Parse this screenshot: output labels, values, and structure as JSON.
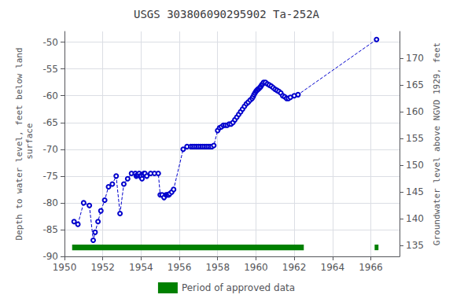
{
  "chart_data": {
    "type": "line",
    "title": "USGS 303806090295902 Ta-252A",
    "ylabel": "Depth to water level, feet below land\n surface",
    "y2label": "Groundwater level above NGVD 1929, feet",
    "x": [
      1950.5,
      1950.7,
      1951.0,
      1951.3,
      1951.5,
      1951.6,
      1951.75,
      1951.9,
      1952.1,
      1952.3,
      1952.5,
      1952.7,
      1952.9,
      1953.1,
      1953.3,
      1953.5,
      1953.7,
      1953.75,
      1953.8,
      1953.85,
      1953.9,
      1953.95,
      1954.0,
      1954.05,
      1954.1,
      1954.15,
      1954.2,
      1954.3,
      1954.5,
      1954.7,
      1954.9,
      1955.0,
      1955.1,
      1955.2,
      1955.3,
      1955.35,
      1955.4,
      1955.45,
      1955.5,
      1955.6,
      1955.7,
      1956.2,
      1956.4,
      1956.6,
      1956.7,
      1956.8,
      1956.9,
      1957.0,
      1957.1,
      1957.2,
      1957.3,
      1957.4,
      1957.5,
      1957.6,
      1957.7,
      1957.8,
      1958.0,
      1958.1,
      1958.2,
      1958.3,
      1958.4,
      1958.5,
      1958.6,
      1958.7,
      1958.8,
      1958.9,
      1959.0,
      1959.1,
      1959.2,
      1959.3,
      1959.4,
      1959.5,
      1959.6,
      1959.7,
      1959.8,
      1959.85,
      1959.9,
      1959.95,
      1960.0,
      1960.05,
      1960.1,
      1960.15,
      1960.2,
      1960.25,
      1960.3,
      1960.35,
      1960.4,
      1960.5,
      1960.6,
      1960.7,
      1960.8,
      1960.9,
      1961.0,
      1961.1,
      1961.2,
      1961.3,
      1961.4,
      1961.5,
      1961.6,
      1961.7,
      1961.8,
      1962.0,
      1962.2,
      1966.3
    ],
    "series": [
      {
        "color": "#0000cc",
        "marker": "hollow_circle",
        "line_style": "dashed",
        "values": [
          -83.5,
          -84.0,
          -80.0,
          -80.5,
          -87.0,
          -85.5,
          -83.5,
          -81.5,
          -79.5,
          -77.0,
          -76.5,
          -75.0,
          -82.0,
          -76.5,
          -75.5,
          -74.5,
          -74.5,
          -75.0,
          -74.8,
          -74.8,
          -74.5,
          -75.0,
          -75.0,
          -75.5,
          -74.8,
          -74.5,
          -74.5,
          -75.0,
          -74.5,
          -74.5,
          -74.5,
          -78.5,
          -78.5,
          -79.0,
          -78.5,
          -78.5,
          -78.5,
          -78.5,
          -78.3,
          -78.0,
          -77.5,
          -70.0,
          -69.5,
          -69.5,
          -69.5,
          -69.5,
          -69.5,
          -69.5,
          -69.5,
          -69.5,
          -69.5,
          -69.5,
          -69.5,
          -69.5,
          -69.5,
          -69.3,
          -66.5,
          -66.0,
          -65.8,
          -65.5,
          -65.5,
          -65.5,
          -65.3,
          -65.3,
          -65.0,
          -64.5,
          -64.0,
          -63.5,
          -63.0,
          -62.5,
          -62.0,
          -61.5,
          -61.2,
          -60.8,
          -60.5,
          -60.2,
          -59.8,
          -59.5,
          -59.2,
          -59.0,
          -58.8,
          -58.7,
          -58.5,
          -58.3,
          -58.0,
          -57.8,
          -57.5,
          -57.5,
          -57.8,
          -58.0,
          -58.2,
          -58.5,
          -58.8,
          -59.0,
          -59.2,
          -59.5,
          -60.0,
          -60.2,
          -60.5,
          -60.5,
          -60.3,
          -60.0,
          -59.8,
          -49.5
        ]
      }
    ],
    "xlim": [
      1950,
      1967.5
    ],
    "xticks": [
      1950,
      1952,
      1954,
      1956,
      1958,
      1960,
      1962,
      1964,
      1966
    ],
    "ylim": [
      -90,
      -48
    ],
    "yticks": [
      -90,
      -85,
      -80,
      -75,
      -70,
      -65,
      -60,
      -55,
      -50
    ],
    "y2lim": [
      133,
      175
    ],
    "y2ticks": [
      135,
      140,
      145,
      150,
      155,
      160,
      165,
      170
    ],
    "grid": true,
    "approved_periods": [
      [
        1950.4,
        1962.5
      ],
      [
        1966.2,
        1966.4
      ]
    ],
    "approved_label": "Period of approved data",
    "approved_color": "#008000",
    "legend": "bottom"
  }
}
